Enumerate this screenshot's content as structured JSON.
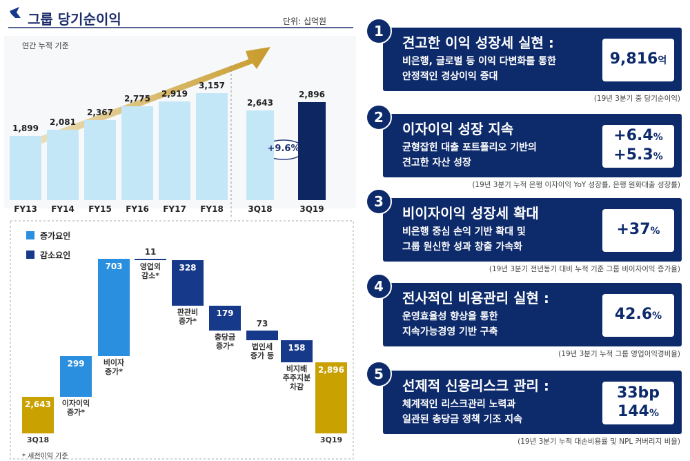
{
  "header": {
    "title": "그룹 당기순이익",
    "unit": "단위: 십억원",
    "subtitle": "연간 누적 기준",
    "footnote": "* 세전이익 기준"
  },
  "chart_data": [
    {
      "type": "bar",
      "categories": [
        "FY13",
        "FY14",
        "FY15",
        "FY16",
        "FY17",
        "FY18"
      ],
      "values": [
        1899,
        2081,
        2367,
        2775,
        2919,
        3157
      ],
      "value_labels": [
        "1,899",
        "2,081",
        "2,367",
        "2,775",
        "2,919",
        "3,157"
      ],
      "color": "#c4e7f8"
    },
    {
      "type": "bar",
      "categories": [
        "3Q18",
        "3Q19"
      ],
      "values": [
        2643,
        2896
      ],
      "value_labels": [
        "2,643",
        "2,896"
      ],
      "colors": [
        "#c4e7f8",
        "#0e2763"
      ],
      "annotation": "+9.6%"
    },
    {
      "type": "waterfall",
      "categories": [
        "3Q18",
        "이자이익\n증가*",
        "비이자\n증가*",
        "영업외\n감소*",
        "판관비\n증가*",
        "충당금\n증가*",
        "법인세\n증가 등",
        "비지배\n주주지분\n차감",
        "3Q19"
      ],
      "values": [
        2643,
        299,
        703,
        -11,
        -328,
        -179,
        -73,
        -158,
        2896
      ],
      "value_labels": [
        "2,643",
        "299",
        "703",
        "11",
        "328",
        "179",
        "73",
        "158",
        "2,896"
      ],
      "measure": [
        "total",
        "increase",
        "increase",
        "decrease",
        "decrease",
        "decrease",
        "decrease",
        "decrease",
        "total"
      ],
      "legend": [
        {
          "name": "증가요인",
          "color": "#2b8fe0"
        },
        {
          "name": "감소요인",
          "color": "#16398a"
        }
      ],
      "total_color": "#c9a100"
    }
  ],
  "cards": [
    {
      "number": "1",
      "title": "견고한 이익 성장세 실현 :",
      "description": "비은행, 글로벌 등 이익 다변화를 통한\n안정적인 경상이익 증대",
      "values": [
        {
          "number": "9,816",
          "unit": "억"
        }
      ],
      "note": "(19년 3분기 중 당기순이익)"
    },
    {
      "number": "2",
      "title": "이자이익 성장 지속",
      "description": "균형잡힌 대출 포트폴리오 기반의\n견고한 자산 성장",
      "values": [
        {
          "number": "+6.4",
          "unit": "%"
        },
        {
          "number": "+5.3",
          "unit": "%"
        }
      ],
      "note": "(19년 3분기 누적 은행 이자이익 YoY 성장률, 은행 원화대출 성장률)"
    },
    {
      "number": "3",
      "title": "비이자이익 성장세 확대",
      "description": "비은행 중심 손익 기반 확대 및\n그룹 원신한 성과 창출 가속화",
      "values": [
        {
          "number": "+37",
          "unit": "%"
        }
      ],
      "note": "(19년 3분기 전년동기 대비 누적 기준 그룹 비이자이익 증가율)"
    },
    {
      "number": "4",
      "title": "전사적인 비용관리 실현 :",
      "description": "운영효율성 향상을 통한\n지속가능경영 기반 구축",
      "values": [
        {
          "number": "42.6",
          "unit": "%"
        }
      ],
      "note": "(19년 3분기 누적 그룹 영업이익경비율)"
    },
    {
      "number": "5",
      "title": "선제적 신용리스크 관리 :",
      "description": "체계적인 리스크관리 노력과\n일관된 충당금 정책 기조 지속",
      "values": [
        {
          "number": "33bp"
        },
        {
          "number": "144",
          "unit": "%"
        }
      ],
      "note": "(19년 3분기 누적 대손비용률 및 NPL 커버리지 비율)"
    }
  ]
}
